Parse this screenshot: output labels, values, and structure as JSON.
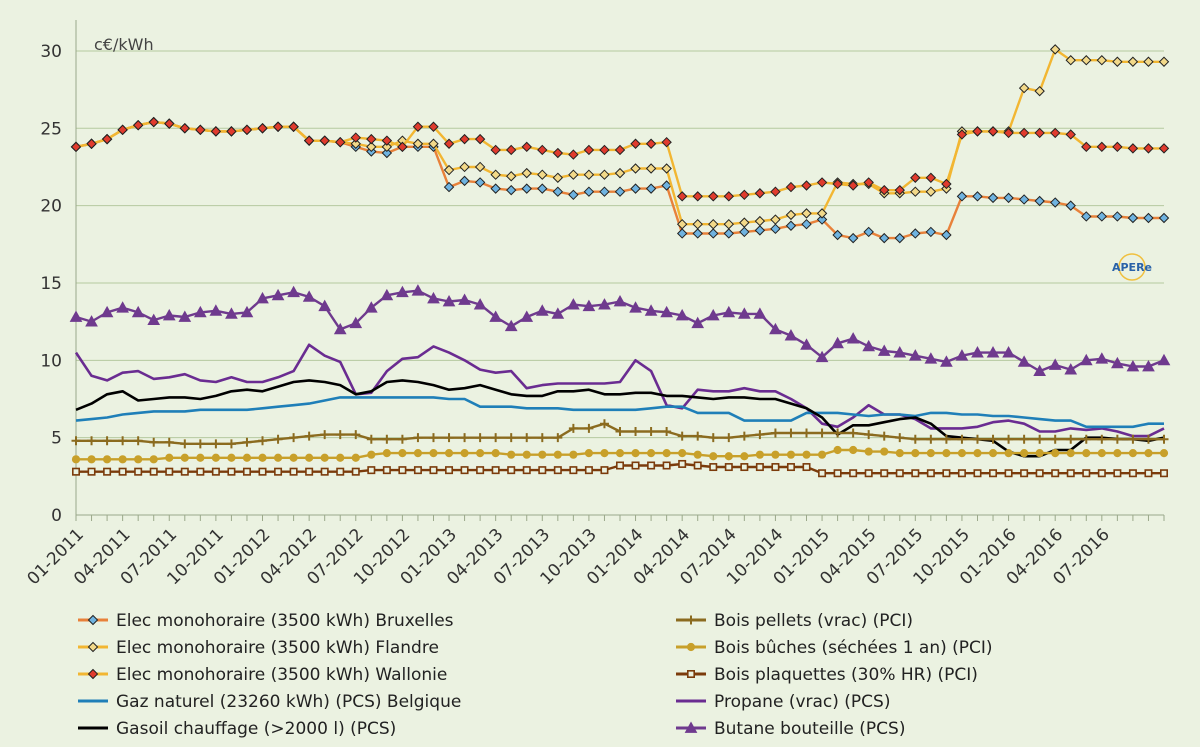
{
  "chart_data": {
    "type": "line",
    "ylabel": "c€/kWh",
    "ylim": [
      0,
      32
    ],
    "yticks": [
      0,
      5,
      10,
      15,
      20,
      25,
      30
    ],
    "xlim": [
      "2011-01",
      "2016-11"
    ],
    "xtick_labels": [
      "01-2011",
      "04-2011",
      "07-2011",
      "10-2011",
      "01-2012",
      "04-2012",
      "07-2012",
      "10-2012",
      "01-2013",
      "04-2013",
      "07-2013",
      "10-2013",
      "01-2014",
      "04-2014",
      "07-2014",
      "10-2014",
      "01-2015",
      "04-2015",
      "07-2015",
      "10-2015",
      "01-2016",
      "04-2016",
      "07-2016"
    ],
    "x_start": "2011-01",
    "x_end": "2016-10",
    "grid": "horizontal",
    "legend_position": "bottom",
    "logo": "APERe",
    "series": [
      {
        "name": "Elec monohoraire (3500 kWh) Bruxelles",
        "color": "#e8813a",
        "marker": "diamond",
        "marker_fill": "#6fb3e0",
        "values": [
          23.8,
          24.0,
          24.3,
          24.9,
          25.2,
          25.4,
          25.3,
          25.0,
          24.9,
          24.8,
          24.8,
          24.9,
          25.0,
          25.1,
          25.1,
          24.2,
          24.2,
          24.1,
          23.8,
          23.5,
          23.4,
          23.8,
          23.8,
          23.8,
          21.2,
          21.6,
          21.5,
          21.1,
          21.0,
          21.1,
          21.1,
          20.9,
          20.7,
          20.9,
          20.9,
          20.9,
          21.1,
          21.1,
          21.3,
          18.2,
          18.2,
          18.2,
          18.2,
          18.3,
          18.4,
          18.5,
          18.7,
          18.8,
          19.1,
          18.1,
          17.9,
          18.3,
          17.9,
          17.9,
          18.2,
          18.3,
          18.1,
          20.6,
          20.6,
          20.5,
          20.5,
          20.4,
          20.3,
          20.2,
          20.0,
          19.3,
          19.3,
          19.3,
          19.2,
          19.2,
          19.2
        ]
      },
      {
        "name": "Elec monohoraire (3500 kWh) Flandre",
        "color": "#f2b632",
        "marker": "diamond",
        "marker_fill": "#f2d98a",
        "values": [
          23.8,
          24.0,
          24.3,
          24.9,
          25.2,
          25.4,
          25.3,
          25.0,
          24.9,
          24.8,
          24.8,
          24.9,
          25.0,
          25.1,
          25.1,
          24.2,
          24.2,
          24.1,
          24.0,
          23.8,
          23.8,
          24.2,
          24.0,
          24.0,
          22.3,
          22.5,
          22.5,
          22.0,
          21.9,
          22.1,
          22.0,
          21.8,
          22.0,
          22.0,
          22.0,
          22.1,
          22.4,
          22.4,
          22.4,
          18.8,
          18.8,
          18.8,
          18.8,
          18.9,
          19.0,
          19.1,
          19.4,
          19.5,
          19.5,
          21.5,
          21.4,
          21.4,
          20.8,
          20.8,
          20.9,
          20.9,
          21.1,
          24.8,
          24.8,
          24.8,
          24.8,
          27.6,
          27.4,
          30.1,
          29.4,
          29.4,
          29.4,
          29.3,
          29.3,
          29.3,
          29.3
        ]
      },
      {
        "name": "Elec monohoraire (3500 kWh) Wallonie",
        "color": "#f2b632",
        "marker": "diamond",
        "marker_fill": "#e03b2e",
        "values": [
          23.8,
          24.0,
          24.3,
          24.9,
          25.2,
          25.4,
          25.3,
          25.0,
          24.9,
          24.8,
          24.8,
          24.9,
          25.0,
          25.1,
          25.1,
          24.2,
          24.2,
          24.1,
          24.4,
          24.3,
          24.2,
          23.8,
          25.1,
          25.1,
          24.0,
          24.3,
          24.3,
          23.6,
          23.6,
          23.8,
          23.6,
          23.4,
          23.3,
          23.6,
          23.6,
          23.6,
          24.0,
          24.0,
          24.1,
          20.6,
          20.6,
          20.6,
          20.6,
          20.7,
          20.8,
          20.9,
          21.2,
          21.3,
          21.5,
          21.4,
          21.3,
          21.5,
          21.0,
          21.0,
          21.8,
          21.8,
          21.4,
          24.6,
          24.8,
          24.8,
          24.7,
          24.7,
          24.7,
          24.7,
          24.6,
          23.8,
          23.8,
          23.8,
          23.7,
          23.7,
          23.7
        ]
      },
      {
        "name": "Gaz naturel (23260 kWh) (PCS) Belgique",
        "color": "#1f7fb8",
        "marker": "none",
        "values": [
          6.1,
          6.2,
          6.3,
          6.5,
          6.6,
          6.7,
          6.7,
          6.7,
          6.8,
          6.8,
          6.8,
          6.8,
          6.9,
          7.0,
          7.1,
          7.2,
          7.4,
          7.6,
          7.6,
          7.6,
          7.6,
          7.6,
          7.6,
          7.6,
          7.5,
          7.5,
          7.0,
          7.0,
          7.0,
          6.9,
          6.9,
          6.9,
          6.8,
          6.8,
          6.8,
          6.8,
          6.8,
          6.9,
          7.0,
          7.0,
          6.6,
          6.6,
          6.6,
          6.1,
          6.1,
          6.1,
          6.1,
          6.6,
          6.6,
          6.6,
          6.5,
          6.4,
          6.5,
          6.5,
          6.4,
          6.6,
          6.6,
          6.5,
          6.5,
          6.4,
          6.4,
          6.3,
          6.2,
          6.1,
          6.1,
          5.7,
          5.7,
          5.7,
          5.7,
          5.9,
          5.9
        ]
      },
      {
        "name": "Gasoil chauffage (>2000 l) (PCS)",
        "color": "#000000",
        "marker": "none",
        "values": [
          6.8,
          7.2,
          7.8,
          8.0,
          7.4,
          7.5,
          7.6,
          7.6,
          7.5,
          7.7,
          8.0,
          8.1,
          8.0,
          8.3,
          8.6,
          8.7,
          8.6,
          8.4,
          7.8,
          8.0,
          8.6,
          8.7,
          8.6,
          8.4,
          8.1,
          8.2,
          8.4,
          8.1,
          7.8,
          7.7,
          7.7,
          8.0,
          8.0,
          8.1,
          7.8,
          7.8,
          7.9,
          7.9,
          7.7,
          7.7,
          7.6,
          7.5,
          7.6,
          7.6,
          7.5,
          7.5,
          7.2,
          6.9,
          6.3,
          5.2,
          5.8,
          5.8,
          6.0,
          6.2,
          6.3,
          5.9,
          5.1,
          5.0,
          4.9,
          4.8,
          4.1,
          3.8,
          3.8,
          4.2,
          4.2,
          5.0,
          5.0,
          4.9,
          4.9,
          4.8,
          5.0
        ]
      },
      {
        "name": "Bois pellets (vrac) (PCI)",
        "color": "#8b6b1f",
        "marker": "plus",
        "values": [
          4.8,
          4.8,
          4.8,
          4.8,
          4.8,
          4.7,
          4.7,
          4.6,
          4.6,
          4.6,
          4.6,
          4.7,
          4.8,
          4.9,
          5.0,
          5.1,
          5.2,
          5.2,
          5.2,
          4.9,
          4.9,
          4.9,
          5.0,
          5.0,
          5.0,
          5.0,
          5.0,
          5.0,
          5.0,
          5.0,
          5.0,
          5.0,
          5.6,
          5.6,
          5.9,
          5.4,
          5.4,
          5.4,
          5.4,
          5.1,
          5.1,
          5.0,
          5.0,
          5.1,
          5.2,
          5.3,
          5.3,
          5.3,
          5.3,
          5.3,
          5.3,
          5.2,
          5.1,
          5.0,
          4.9,
          4.9,
          4.9,
          4.9,
          4.9,
          4.9,
          4.9,
          4.9,
          4.9,
          4.9,
          4.9,
          4.9,
          4.9,
          4.9,
          4.9,
          4.9,
          4.9
        ]
      },
      {
        "name": "Bois bûches (séchées 1 an) (PCI)",
        "color": "#c8a02a",
        "marker": "circle",
        "values": [
          3.6,
          3.6,
          3.6,
          3.6,
          3.6,
          3.6,
          3.7,
          3.7,
          3.7,
          3.7,
          3.7,
          3.7,
          3.7,
          3.7,
          3.7,
          3.7,
          3.7,
          3.7,
          3.7,
          3.9,
          4.0,
          4.0,
          4.0,
          4.0,
          4.0,
          4.0,
          4.0,
          4.0,
          3.9,
          3.9,
          3.9,
          3.9,
          3.9,
          4.0,
          4.0,
          4.0,
          4.0,
          4.0,
          4.0,
          4.0,
          3.9,
          3.8,
          3.8,
          3.8,
          3.9,
          3.9,
          3.9,
          3.9,
          3.9,
          4.2,
          4.2,
          4.1,
          4.1,
          4.0,
          4.0,
          4.0,
          4.0,
          4.0,
          4.0,
          4.0,
          4.0,
          4.0,
          4.0,
          4.0,
          4.0,
          4.0,
          4.0,
          4.0,
          4.0,
          4.0,
          4.0
        ]
      },
      {
        "name": "Bois plaquettes (30% HR) (PCI)",
        "color": "#7b3b0b",
        "marker": "square",
        "values": [
          2.8,
          2.8,
          2.8,
          2.8,
          2.8,
          2.8,
          2.8,
          2.8,
          2.8,
          2.8,
          2.8,
          2.8,
          2.8,
          2.8,
          2.8,
          2.8,
          2.8,
          2.8,
          2.8,
          2.9,
          2.9,
          2.9,
          2.9,
          2.9,
          2.9,
          2.9,
          2.9,
          2.9,
          2.9,
          2.9,
          2.9,
          2.9,
          2.9,
          2.9,
          2.9,
          3.2,
          3.2,
          3.2,
          3.2,
          3.3,
          3.2,
          3.1,
          3.1,
          3.1,
          3.1,
          3.1,
          3.1,
          3.1,
          2.7,
          2.7,
          2.7,
          2.7,
          2.7,
          2.7,
          2.7,
          2.7,
          2.7,
          2.7,
          2.7,
          2.7,
          2.7,
          2.7,
          2.7,
          2.7,
          2.7,
          2.7,
          2.7,
          2.7,
          2.7,
          2.7,
          2.7
        ]
      },
      {
        "name": "Propane (vrac) (PCS)",
        "color": "#6a2c91",
        "marker": "none",
        "values": [
          10.5,
          9.0,
          8.7,
          9.2,
          9.3,
          8.8,
          8.9,
          9.1,
          8.7,
          8.6,
          8.9,
          8.6,
          8.6,
          8.9,
          9.3,
          11.0,
          10.3,
          9.9,
          7.8,
          7.9,
          9.3,
          10.1,
          10.2,
          10.9,
          10.5,
          10.0,
          9.4,
          9.2,
          9.3,
          8.2,
          8.4,
          8.5,
          8.5,
          8.5,
          8.5,
          8.6,
          10.0,
          9.3,
          7.1,
          6.9,
          8.1,
          8.0,
          8.0,
          8.2,
          8.0,
          8.0,
          7.5,
          6.9,
          5.9,
          5.7,
          6.3,
          7.1,
          6.5,
          6.5,
          6.2,
          5.6,
          5.6,
          5.6,
          5.7,
          6.0,
          6.1,
          5.9,
          5.4,
          5.4,
          5.6,
          5.5,
          5.6,
          5.4,
          5.1,
          5.1,
          5.6
        ]
      },
      {
        "name": "Butane bouteille (PCS)",
        "color": "#6f3a8e",
        "marker": "triangle",
        "values": [
          12.8,
          12.5,
          13.1,
          13.4,
          13.1,
          12.6,
          12.9,
          12.8,
          13.1,
          13.2,
          13.0,
          13.1,
          14.0,
          14.2,
          14.4,
          14.1,
          13.5,
          12.0,
          12.4,
          13.4,
          14.2,
          14.4,
          14.5,
          14.0,
          13.8,
          13.9,
          13.6,
          12.8,
          12.2,
          12.8,
          13.2,
          13.0,
          13.6,
          13.5,
          13.6,
          13.8,
          13.4,
          13.2,
          13.1,
          12.9,
          12.4,
          12.9,
          13.1,
          13.0,
          13.0,
          12.0,
          11.6,
          11.0,
          10.2,
          11.1,
          11.4,
          10.9,
          10.6,
          10.5,
          10.3,
          10.1,
          9.9,
          10.3,
          10.5,
          10.5,
          10.5,
          9.9,
          9.3,
          9.7,
          9.4,
          10.0,
          10.1,
          9.8,
          9.6,
          9.6,
          10.0
        ]
      }
    ]
  }
}
